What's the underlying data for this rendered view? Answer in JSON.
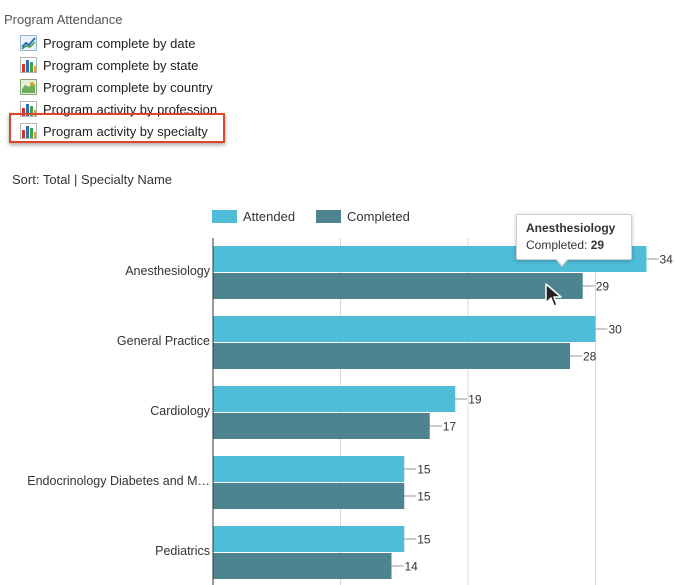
{
  "section_title": "Program Attendance",
  "nav": [
    {
      "label": "Program complete by date",
      "icon": "line-chart-icon"
    },
    {
      "label": "Program complete by state",
      "icon": "bar-chart-icon"
    },
    {
      "label": "Program complete by country",
      "icon": "map-chart-icon"
    },
    {
      "label": "Program activity by profession",
      "icon": "bar-chart-icon"
    },
    {
      "label": "Program activity by specialty",
      "icon": "bar-chart-icon",
      "selected": true
    }
  ],
  "sort": {
    "prefix": "Sort:",
    "options": [
      "Total",
      "Specialty Name"
    ],
    "separator": "|"
  },
  "chart_data": {
    "type": "bar",
    "orientation": "horizontal",
    "categories": [
      "Anesthesiology",
      "General Practice",
      "Cardiology",
      "Endocrinology Diabetes and M…",
      "Pediatrics"
    ],
    "series": [
      {
        "name": "Attended",
        "color": "#4fbcd8",
        "values": [
          34,
          30,
          19,
          15,
          15
        ]
      },
      {
        "name": "Completed",
        "color": "#4d8490",
        "values": [
          29,
          28,
          17,
          15,
          14
        ]
      }
    ],
    "xlim": [
      0,
      36
    ],
    "grid": true,
    "legend": "top-left"
  },
  "tooltip": {
    "title": "Anesthesiology",
    "label": "Completed:",
    "value": "29"
  }
}
